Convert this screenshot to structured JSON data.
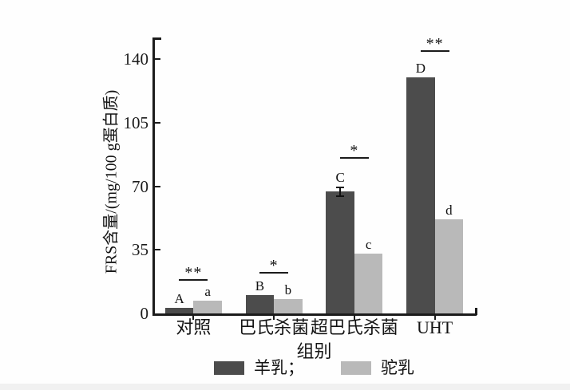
{
  "chart_data": {
    "type": "bar",
    "title": "",
    "xlabel": "组别",
    "ylabel": "FRS含量/(mg/100 g蛋白质)",
    "ylim": [
      0,
      150
    ],
    "yticks": [
      0,
      35,
      70,
      105,
      140
    ],
    "categories": [
      "对照",
      "巴氏杀菌",
      "超巴氏杀菌",
      "UHT"
    ],
    "series": [
      {
        "name": "羊乳",
        "color": "#4c4c4c",
        "values": [
          3,
          10,
          67,
          130
        ],
        "point_labels": [
          "A",
          "B",
          "C",
          "D"
        ]
      },
      {
        "name": "驼乳",
        "color": "#b9b9b9",
        "values": [
          7,
          8,
          33,
          52
        ],
        "point_labels": [
          "a",
          "b",
          "c",
          "d"
        ]
      }
    ],
    "error_bar": {
      "series": "羊乳",
      "category": "超巴氏杀菌",
      "plus_minus": 3
    },
    "significance_markers": [
      {
        "category": "对照",
        "marker": "**",
        "line_y": 19
      },
      {
        "category": "巴氏杀菌",
        "marker": "*",
        "line_y": 23
      },
      {
        "category": "超巴氏杀菌",
        "marker": "*",
        "line_y": 86
      },
      {
        "category": "UHT",
        "marker": "**",
        "line_y": 145
      }
    ],
    "legend": {
      "position": "bottom",
      "entries": [
        {
          "label": "羊乳；",
          "color": "#4c4c4c"
        },
        {
          "label": "驼乳",
          "color": "#b9b9b9"
        }
      ]
    },
    "grid": false,
    "axis_color": "#1b1b1b"
  }
}
